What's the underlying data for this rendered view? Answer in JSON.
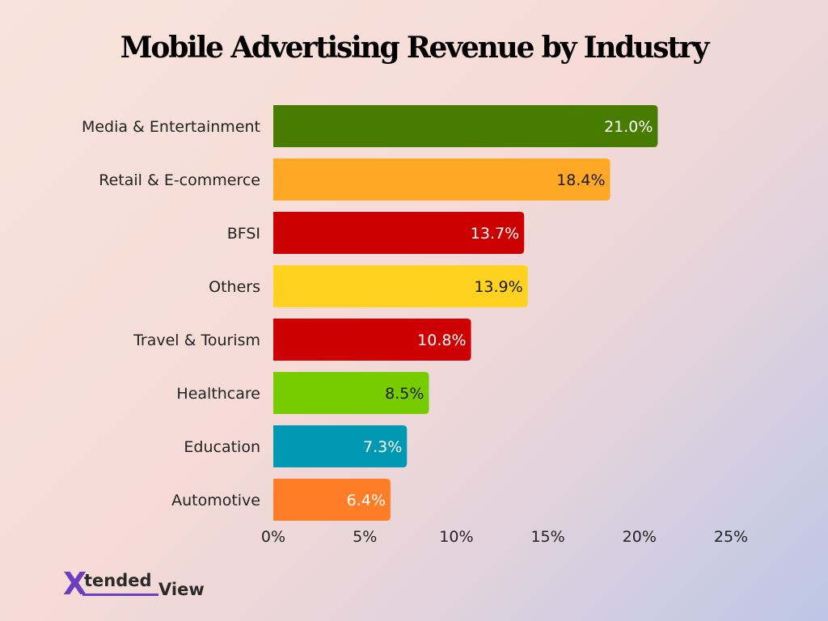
{
  "chart_data": {
    "type": "bar",
    "orientation": "horizontal",
    "title": "Mobile Advertising Revenue by Industry",
    "categories": [
      "Media & Entertainment",
      "Retail & E-commerce",
      "BFSI",
      "Others",
      "Travel & Tourism",
      "Healthcare",
      "Education",
      "Automotive"
    ],
    "values": [
      21.0,
      18.4,
      13.7,
      13.9,
      10.8,
      8.5,
      7.3,
      6.4
    ],
    "value_labels": [
      "21.0%",
      "18.4%",
      "13.7%",
      "13.9%",
      "10.8%",
      "8.5%",
      "7.3%",
      "6.4%"
    ],
    "colors": [
      "#487c00",
      "#ffa826",
      "#cc0000",
      "#ffd21f",
      "#cc0000",
      "#77cc00",
      "#0098b2",
      "#ff7d26"
    ],
    "label_colors": [
      "#ffffff",
      "#1a1a1a",
      "#ffffff",
      "#1a1a1a",
      "#ffffff",
      "#1a1a1a",
      "#ffffff",
      "#ffffff"
    ],
    "xlim": [
      0,
      25
    ],
    "xticks": [
      0,
      5,
      10,
      15,
      20,
      25
    ],
    "xtick_labels": [
      "0%",
      "5%",
      "10%",
      "15%",
      "20%",
      "25%"
    ],
    "grid": false,
    "legend": "none"
  },
  "logo": {
    "x": "X",
    "tended": "tended",
    "view": "View"
  }
}
